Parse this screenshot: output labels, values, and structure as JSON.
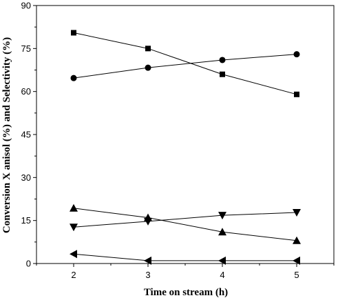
{
  "chart_data": {
    "type": "line",
    "title": "",
    "xlabel": "Time on stream (h)",
    "ylabel": "Conversion X anisol (%) and Selectivity (%)",
    "x": [
      2,
      3,
      4,
      5
    ],
    "xticks": [
      "2",
      "3",
      "4",
      "5"
    ],
    "xlim": [
      1.5,
      5.5
    ],
    "yticks": [
      "0",
      "15",
      "30",
      "45",
      "60",
      "75",
      "90"
    ],
    "ylim": [
      0,
      90
    ],
    "grid": false,
    "legend": "none",
    "series": [
      {
        "marker": "square",
        "color": "#000000",
        "values": [
          80.5,
          75.0,
          66.0,
          59.0
        ]
      },
      {
        "marker": "circle",
        "color": "#000000",
        "values": [
          64.7,
          68.3,
          71.0,
          73.0
        ]
      },
      {
        "marker": "triangle-up",
        "color": "#000000",
        "values": [
          19.3,
          16.0,
          11.0,
          8.0
        ]
      },
      {
        "marker": "triangle-down",
        "color": "#000000",
        "values": [
          12.7,
          14.7,
          16.8,
          17.8
        ]
      },
      {
        "marker": "triangle-left",
        "color": "#000000",
        "values": [
          3.3,
          1.0,
          1.0,
          1.0
        ]
      }
    ]
  }
}
